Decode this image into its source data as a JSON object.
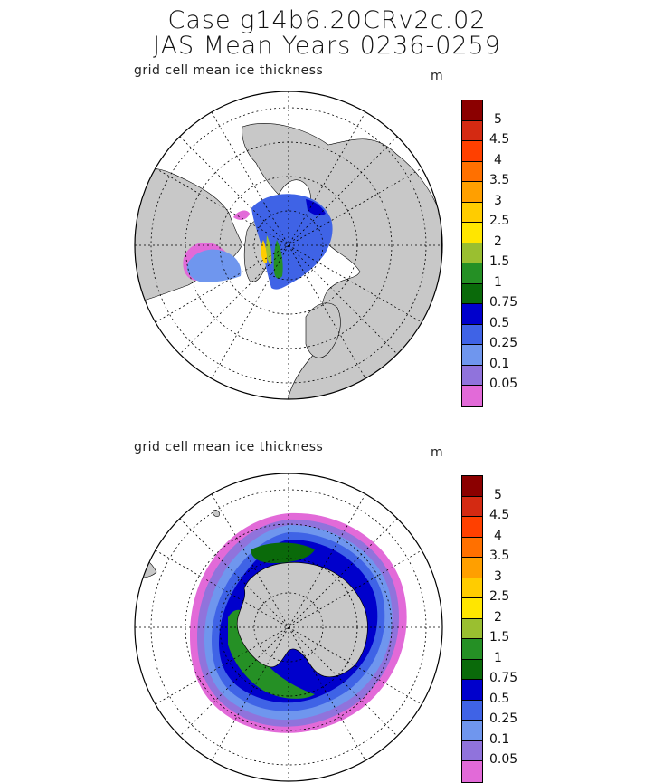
{
  "title_line1": "Case g14b6.20CRv2c.02",
  "title_line2": "JAS Mean    Years 0236-0259",
  "panels": [
    {
      "label": "grid cell mean ice thickness",
      "unit": "m",
      "hemisphere": "north"
    },
    {
      "label": "grid cell mean ice thickness",
      "unit": "m",
      "hemisphere": "south"
    }
  ],
  "colorbar": {
    "labels": [
      "5",
      "4.5",
      "4",
      "3.5",
      "3",
      "2.5",
      "2",
      "1.5",
      "1",
      "0.75",
      "0.5",
      "0.25",
      "0.1",
      "0.05"
    ],
    "colors": [
      "#8b0000",
      "#d42a12",
      "#ff4000",
      "#ff7000",
      "#ff9f00",
      "#ffcc00",
      "#ffe600",
      "#9abf30",
      "#259025",
      "#0a6a0a",
      "#0000cc",
      "#3f63e6",
      "#6f96ee",
      "#9073dc",
      "#e26ad8"
    ]
  },
  "colors": {
    "land": "#c8c8c8",
    "ocean": "#ffffff",
    "grid": "#000000"
  }
}
